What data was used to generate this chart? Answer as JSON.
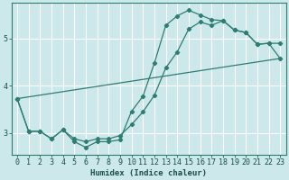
{
  "xlabel": "Humidex (Indice chaleur)",
  "bg_color": "#cce8ea",
  "grid_color": "#ffffff",
  "line_color": "#2e7d72",
  "xlim": [
    -0.5,
    23.5
  ],
  "ylim": [
    2.55,
    5.75
  ],
  "yticks": [
    3,
    4,
    5
  ],
  "xticks": [
    0,
    1,
    2,
    3,
    4,
    5,
    6,
    7,
    8,
    9,
    10,
    11,
    12,
    13,
    14,
    15,
    16,
    17,
    18,
    19,
    20,
    21,
    22,
    23
  ],
  "line1_x": [
    0,
    1,
    2,
    3,
    4,
    5,
    6,
    7,
    8,
    9,
    10,
    11,
    12,
    13,
    14,
    15,
    16,
    17,
    18,
    19,
    20,
    21,
    22,
    23
  ],
  "line1_y": [
    3.73,
    3.04,
    3.04,
    2.88,
    3.07,
    2.82,
    2.7,
    2.82,
    2.82,
    2.86,
    3.46,
    3.78,
    4.48,
    5.28,
    5.48,
    5.6,
    5.5,
    5.4,
    5.38,
    5.18,
    5.13,
    4.88,
    4.9,
    4.9
  ],
  "line2_x": [
    0,
    1,
    2,
    3,
    4,
    5,
    6,
    7,
    8,
    9,
    10,
    11,
    12,
    13,
    14,
    15,
    16,
    17,
    18,
    19,
    20,
    21,
    22,
    23
  ],
  "line2_y": [
    3.73,
    3.04,
    3.04,
    2.88,
    3.07,
    2.88,
    2.82,
    2.88,
    2.88,
    2.95,
    3.18,
    3.45,
    3.8,
    4.38,
    4.72,
    5.2,
    5.35,
    5.28,
    5.38,
    5.18,
    5.13,
    4.88,
    4.9,
    4.58
  ],
  "line3_x": [
    0,
    23
  ],
  "line3_y": [
    3.73,
    4.58
  ]
}
